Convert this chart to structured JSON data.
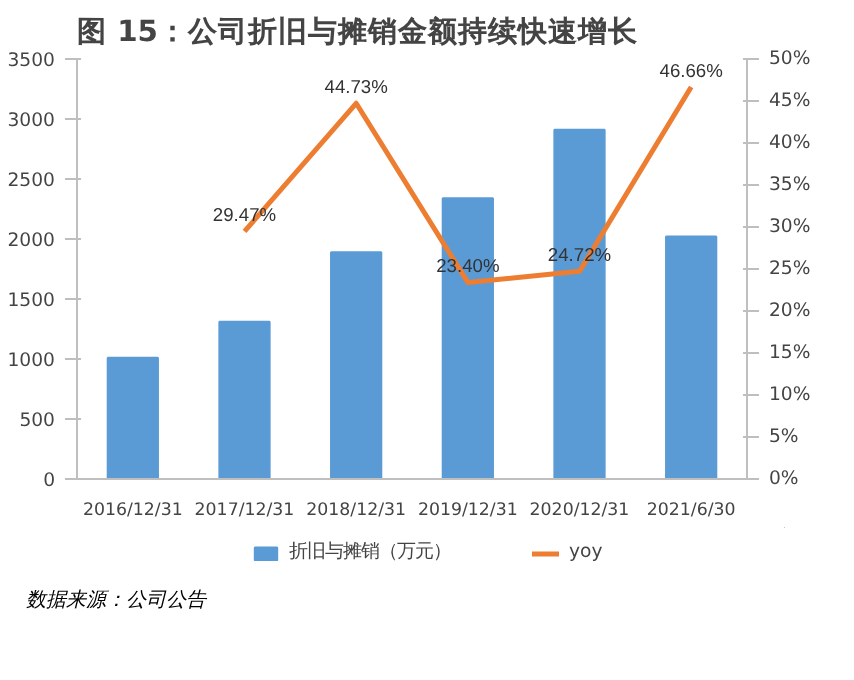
{
  "chart_data": {
    "type": "bar",
    "title": "图 15：公司折旧与摊销金额持续快速增长",
    "categories": [
      "2016/12/31",
      "2017/12/31",
      "2018/12/31",
      "2019/12/31",
      "2020/12/31",
      "2021/6/30"
    ],
    "series": [
      {
        "name": "折旧与摊销（万元）",
        "color": "#5b9bd5",
        "values": [
          1010,
          1310,
          1890,
          2340,
          2910,
          2020
        ]
      },
      {
        "name": "yoy",
        "type": "line",
        "axis": "y2",
        "color": "#ed7d31",
        "values": [
          null,
          29.47,
          44.73,
          23.4,
          24.72,
          46.66
        ],
        "value_labels": [
          null,
          "29.47%",
          "44.73%",
          "23.40%",
          "24.72%",
          "46.66%"
        ]
      }
    ],
    "ylim": [
      0,
      3500
    ],
    "yticks": [
      0,
      500,
      1000,
      1500,
      2000,
      2500,
      3000,
      3500
    ],
    "y2lim": [
      0,
      50
    ],
    "y2ticks": [
      {
        "value": 0,
        "label": "0%"
      },
      {
        "value": 5,
        "label": "5%"
      },
      {
        "value": 10,
        "label": "10%"
      },
      {
        "value": 15,
        "label": "15%"
      },
      {
        "value": 20,
        "label": "20%"
      },
      {
        "value": 25,
        "label": "25%"
      },
      {
        "value": 30,
        "label": "30%"
      },
      {
        "value": 35,
        "label": "35%"
      },
      {
        "value": 40,
        "label": "40%"
      },
      {
        "value": 45,
        "label": "45%"
      },
      {
        "value": 50,
        "label": "50%"
      }
    ],
    "legend": "bottom",
    "grid": false,
    "marker": "none",
    "line_style": "solid",
    "annotations": [
      "数据来源：公司公告"
    ]
  }
}
